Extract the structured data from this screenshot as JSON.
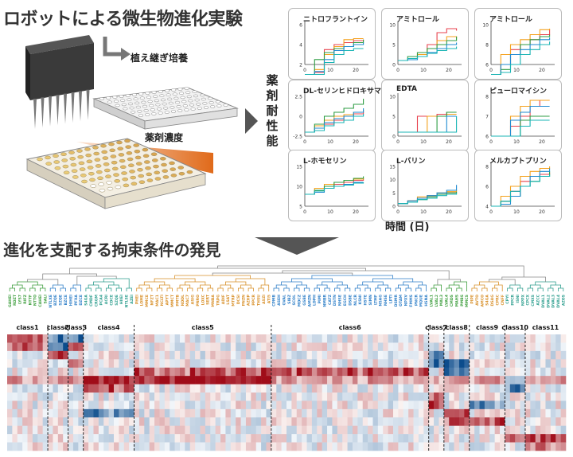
{
  "titles": {
    "top": "ロボットによる微生物進化実験",
    "bottom": "進化を支配する拘束条件の発見"
  },
  "robot": {
    "transfer_label": "植え継ぎ培養",
    "concentration_label": "薬剤濃度"
  },
  "panels_group": {
    "vertical_label": [
      "薬",
      "剤",
      "耐",
      "性",
      "能"
    ],
    "x_axis_label": "時間 (日)"
  },
  "panels": [
    {
      "title": "ニトロフラントイン",
      "yticks": [
        "6",
        "4",
        "2"
      ],
      "xticks": [
        "0",
        "10",
        "20"
      ],
      "series": [
        {
          "color": "#e8434f",
          "values": [
            1,
            1.2,
            3.5,
            4,
            4.2,
            4.4,
            4.5
          ]
        },
        {
          "color": "#f4a11c",
          "values": [
            1,
            1.5,
            3,
            3.8,
            4.5,
            4.6,
            4.6
          ]
        },
        {
          "color": "#2f9e44",
          "values": [
            1,
            2.5,
            3.2,
            3.6,
            3.8,
            4.2,
            4.5
          ]
        },
        {
          "color": "#1f8ad1",
          "values": [
            1,
            1.3,
            2.5,
            3.4,
            3.8,
            4,
            4.2
          ]
        },
        {
          "color": "#19b4b4",
          "values": [
            1,
            1,
            2.2,
            3,
            3.4,
            3.6,
            3.6
          ]
        }
      ]
    },
    {
      "title": "アミトロール",
      "yticks": [
        "10",
        "5",
        "0"
      ],
      "xticks": [
        "0",
        "10",
        "20"
      ],
      "series": [
        {
          "color": "#e8434f",
          "values": [
            1,
            1.5,
            3,
            5,
            8,
            9,
            8.5
          ]
        },
        {
          "color": "#f4a11c",
          "values": [
            1,
            1.5,
            2.5,
            4,
            6,
            7,
            6.5
          ]
        },
        {
          "color": "#2f9e44",
          "values": [
            1,
            2,
            3,
            4,
            5,
            6,
            7
          ]
        },
        {
          "color": "#1f8ad1",
          "values": [
            1,
            1.2,
            2,
            3,
            4,
            5,
            5.5
          ]
        },
        {
          "color": "#19b4b4",
          "values": [
            1,
            1.5,
            2,
            2.8,
            3.5,
            4,
            4.5
          ]
        }
      ]
    },
    {
      "title": "アミトロール",
      "yticks": [
        "10",
        "8",
        "6"
      ],
      "xticks": [
        "0",
        "10",
        "20"
      ],
      "series": [
        {
          "color": "#e8434f",
          "values": [
            5,
            6,
            7.5,
            8,
            8.5,
            9,
            9.5
          ]
        },
        {
          "color": "#f4a11c",
          "values": [
            5,
            7,
            8,
            8.5,
            9,
            9.5,
            9.6
          ]
        },
        {
          "color": "#2f9e44",
          "values": [
            5,
            5.5,
            7,
            8,
            8.5,
            8.8,
            9
          ]
        },
        {
          "color": "#1f8ad1",
          "values": [
            5,
            6,
            7,
            7.5,
            8,
            8.5,
            8.7
          ]
        },
        {
          "color": "#19b4b4",
          "values": [
            5,
            5.2,
            6,
            7,
            7.5,
            8,
            8.3
          ]
        }
      ]
    },
    {
      "title": "DL-セリンヒドロキサマート",
      "yticks": [
        "2.5",
        "0",
        "-2.5"
      ],
      "xticks": [
        "0",
        "10",
        "20"
      ],
      "series": [
        {
          "color": "#e8434f",
          "values": [
            -2,
            -1.5,
            -1,
            -0.5,
            0,
            0.3,
            0.5
          ]
        },
        {
          "color": "#f4a11c",
          "values": [
            -2,
            -1.2,
            -0.5,
            0,
            0.2,
            0.5,
            0.8
          ]
        },
        {
          "color": "#2f9e44",
          "values": [
            -2,
            -1,
            0,
            0.5,
            1,
            1.5,
            2.2
          ]
        },
        {
          "color": "#1f8ad1",
          "values": [
            -2,
            -1.5,
            -0.8,
            -0.3,
            0,
            0.5,
            1
          ]
        },
        {
          "color": "#19b4b4",
          "values": [
            -2,
            -1.8,
            -1.2,
            -0.8,
            -0.5,
            0,
            0.3
          ]
        }
      ]
    },
    {
      "title": "EDTA",
      "yticks": [
        "10",
        "5",
        "0"
      ],
      "xticks": [
        "0",
        "10",
        "20"
      ],
      "series": [
        {
          "color": "#e8434f",
          "values": [
            1,
            1,
            5,
            5,
            5.5,
            6,
            6
          ]
        },
        {
          "color": "#f4a11c",
          "values": [
            1,
            1,
            1,
            5,
            5,
            5.5,
            5.5
          ]
        },
        {
          "color": "#2f9e44",
          "values": [
            1,
            1,
            1,
            1,
            5,
            6,
            6
          ]
        },
        {
          "color": "#1f8ad1",
          "values": [
            1,
            1,
            1,
            1,
            1,
            5,
            5
          ]
        },
        {
          "color": "#19b4b4",
          "values": [
            1,
            1,
            1,
            1,
            1,
            1,
            5
          ]
        }
      ]
    },
    {
      "title": "ピューロマイシン",
      "yticks": [
        "8",
        "7",
        "6"
      ],
      "xticks": [
        "0",
        "10",
        "20"
      ],
      "series": [
        {
          "color": "#e8434f",
          "values": [
            6,
            6,
            6.5,
            7,
            7.5,
            7.8,
            7.8
          ]
        },
        {
          "color": "#f4a11c",
          "values": [
            6,
            6,
            7,
            7.5,
            7.8,
            7.8,
            7.8
          ]
        },
        {
          "color": "#2f9e44",
          "values": [
            6,
            6,
            6,
            6.8,
            7,
            7,
            7
          ]
        },
        {
          "color": "#1f8ad1",
          "values": [
            6,
            6,
            6.8,
            7.2,
            7.5,
            7.5,
            7.5
          ]
        },
        {
          "color": "#19b4b4",
          "values": [
            6,
            6,
            6,
            6.5,
            6.8,
            6.8,
            6.8
          ]
        }
      ]
    },
    {
      "title": "L-ホモセリン",
      "yticks": [
        "15",
        "10",
        "5"
      ],
      "xticks": [
        "0",
        "10",
        "20"
      ],
      "series": [
        {
          "color": "#e8434f",
          "values": [
            8,
            9,
            10,
            10.5,
            11,
            11.5,
            12
          ]
        },
        {
          "color": "#f4a11c",
          "values": [
            8,
            9.5,
            10.5,
            11,
            11.5,
            11.8,
            12
          ]
        },
        {
          "color": "#2f9e44",
          "values": [
            8,
            9,
            10,
            11,
            11.5,
            12,
            12.5
          ]
        },
        {
          "color": "#1f8ad1",
          "values": [
            8,
            8.5,
            9.5,
            10,
            10.5,
            11,
            11
          ]
        },
        {
          "color": "#19b4b4",
          "values": [
            8,
            8.8,
            9.5,
            10,
            10.3,
            10.8,
            11
          ]
        }
      ]
    },
    {
      "title": "L-バリン",
      "yticks": [
        "15",
        "10",
        "5",
        "0"
      ],
      "xticks": [
        "0",
        "10",
        "20"
      ],
      "series": [
        {
          "color": "#e8434f",
          "values": [
            1,
            2,
            3,
            4,
            4.5,
            5,
            5
          ]
        },
        {
          "color": "#f4a11c",
          "values": [
            1,
            2,
            3.5,
            4,
            5,
            5.5,
            6
          ]
        },
        {
          "color": "#2f9e44",
          "values": [
            1,
            1.5,
            2.5,
            3.5,
            4.5,
            5,
            5.5
          ]
        },
        {
          "color": "#1f8ad1",
          "values": [
            1,
            2,
            3,
            4,
            5,
            6,
            8
          ]
        },
        {
          "color": "#19b4b4",
          "values": [
            1,
            1.5,
            2.5,
            3,
            4,
            4.5,
            5
          ]
        }
      ]
    },
    {
      "title": "メルカプトプリン",
      "yticks": [
        "8",
        "6",
        "4"
      ],
      "xticks": [
        "0",
        "10",
        "20"
      ],
      "series": [
        {
          "color": "#e8434f",
          "values": [
            4,
            4.5,
            5.5,
            6.5,
            7,
            7.2,
            7.4
          ]
        },
        {
          "color": "#f4a11c",
          "values": [
            4,
            5,
            6,
            7,
            7.5,
            7.8,
            8
          ]
        },
        {
          "color": "#2f9e44",
          "values": [
            4,
            4.5,
            5,
            6,
            6.5,
            7,
            7.5
          ]
        },
        {
          "color": "#1f8ad1",
          "values": [
            4,
            4.2,
            5,
            6,
            7,
            7.5,
            7.8
          ]
        },
        {
          "color": "#19b4b4",
          "values": [
            4,
            4.5,
            5.5,
            6,
            6.5,
            7,
            7.2
          ]
        }
      ]
    }
  ],
  "classes": [
    {
      "label": "class1",
      "color": "#3f9f3f",
      "leaves": [
        "GAHEI",
        "RDZT",
        "LYS7",
        "RIFZ",
        "NTTF",
        "NTTO",
        "CAHEI",
        "SALI"
      ]
    },
    {
      "label": "class2",
      "color": "#2f7fc8",
      "leaves": [
        "NTLXE",
        "BZQE",
        "SZQE",
        "BZCE"
      ]
    },
    {
      "label": "class3",
      "color": "#2f7fc8",
      "leaves": [
        "HIHEI",
        "PFXA",
        "DZCE"
      ]
    },
    {
      "label": "class4",
      "color": "#2f9f8f",
      "leaves": [
        "S4GA",
        "CMDF",
        "CRGM",
        "PCA4",
        "ACRI",
        "CDCE",
        "SZQE",
        "HIIEI",
        "NTLSE",
        "AZEI"
      ]
    },
    {
      "label": "class5",
      "color": "#d8902a",
      "leaves": [
        "PHEI",
        "LOME",
        "MMCE",
        "NFZT",
        "MAC1",
        "NCLTI",
        "APYT",
        "MMCT",
        "PMTB",
        "NDDL",
        "MAC7",
        "ASIG",
        "PNRO",
        "LOXC",
        "SERT",
        "MNBA",
        "TRPG",
        "ADIF",
        "LSAT",
        "MTRP",
        "DCSI",
        "PNZN",
        "AZHP",
        "PPCR",
        "THSU",
        "ASZI",
        "ATI5"
      ]
    },
    {
      "label": "class6",
      "color": "#2f7fc8",
      "leaves": [
        "CPMB",
        "ASEH",
        "GVAL",
        "SIBZ",
        "SCOL",
        "MDCZ",
        "GSBE",
        "AMZN",
        "LDPH",
        "PIMI",
        "NMBR",
        "CATZ",
        "DSTN",
        "NHSE",
        "EGCH",
        "DSBE",
        "NLCR",
        "KSNI",
        "HSTE",
        "SIMN",
        "LTMF",
        "NSAG",
        "NHSE",
        "LPTI",
        "DSMR",
        "OTAM",
        "NPXV",
        "FMMS",
        "PNCR",
        "MQUE",
        "HSNA"
      ]
    },
    {
      "label": "class7",
      "color": "#3f9f3f",
      "leaves": [
        "LVAL1",
        "LVAL2",
        "MAL3"
      ]
    },
    {
      "label": "class8",
      "color": "#3f9f3f",
      "leaves": [
        "LVAL4",
        "CMDS",
        "MAHS",
        "PMBS",
        "MMCS"
      ]
    },
    {
      "label": "class9",
      "color": "#d8902a",
      "leaves": [
        "PIPE",
        "AVTO",
        "AMCO",
        "S4GA",
        "DSAG",
        "CPRC",
        "CNFF"
      ]
    },
    {
      "label": "class10",
      "color": "#2f9f8f",
      "leaves": [
        "CPYI",
        "PPCR",
        "ISNI",
        "NPPX"
      ]
    },
    {
      "label": "class11",
      "color": "#2f9f8f",
      "leaves": [
        "CPCX",
        "CMXS",
        "AZCC",
        "DVAL1",
        "DVAL2",
        "DVAL3",
        "DVAL4",
        "AZOS"
      ]
    }
  ],
  "colors": {
    "panel_line_red": "#e8434f",
    "panel_line_orange": "#f4a11c",
    "panel_line_green": "#2f9e44",
    "panel_line_blue": "#1f8ad1",
    "panel_line_cyan": "#19b4b4",
    "heat_high": "#a00d1e",
    "heat_low": "#0b4a8a",
    "dendrogram_gray": "#888888",
    "gradient_orange": "#e06a1a"
  }
}
